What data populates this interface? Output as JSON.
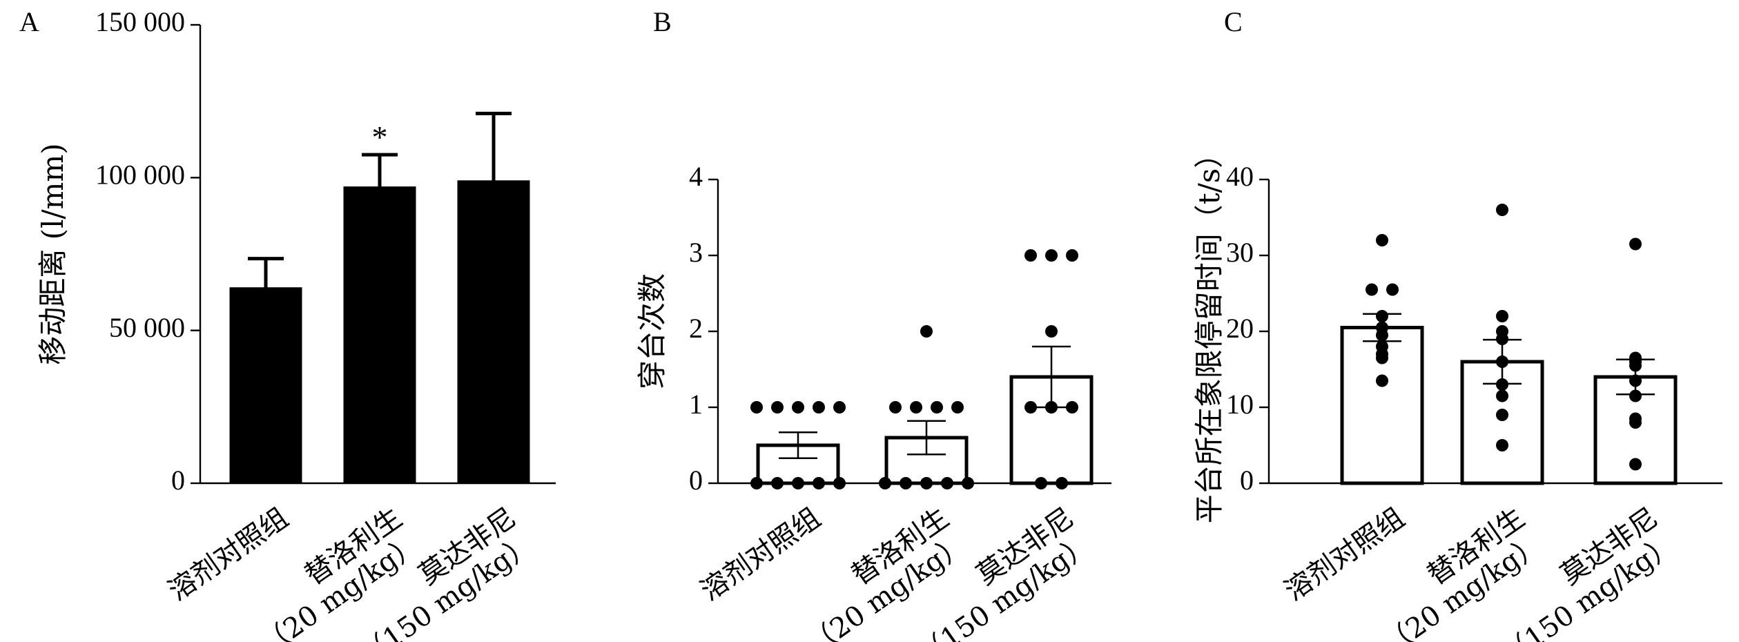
{
  "panels": [
    {
      "letter": "A",
      "ylabel": "移动距离 (l/mm)",
      "chart_data": {
        "type": "bar",
        "categories": [
          [
            "溶剂对照组"
          ],
          [
            "替洛利生",
            "（20 mg/kg）"
          ],
          [
            "莫达非尼",
            "（150 mg/kg）"
          ]
        ],
        "values": [
          64000,
          97000,
          99000
        ],
        "errors": [
          9500,
          10500,
          22000
        ],
        "ylim": [
          0,
          150000
        ],
        "yticks": [
          0,
          50000,
          100000,
          150000
        ],
        "ytick_labels": [
          "0",
          "50 000",
          "100 000",
          "150 000"
        ],
        "significance": [
          "",
          "*",
          ""
        ],
        "bar_fill": "#000000"
      }
    },
    {
      "letter": "B",
      "ylabel": "穿台次数",
      "chart_data": {
        "type": "bar",
        "categories": [
          [
            "溶剂对照组"
          ],
          [
            "替洛利生",
            "（20 mg/kg）"
          ],
          [
            "莫达非尼",
            "（150 mg/kg）"
          ]
        ],
        "values": [
          0.5,
          0.6,
          1.4
        ],
        "errors": [
          0.17,
          0.22,
          0.4
        ],
        "points": [
          [
            1,
            1,
            1,
            1,
            1,
            0,
            0,
            0,
            0,
            0
          ],
          [
            2,
            1,
            1,
            1,
            1,
            0,
            0,
            0,
            0,
            0
          ],
          [
            3,
            3,
            3,
            2,
            1,
            1,
            1,
            0,
            0
          ]
        ],
        "ylim": [
          0,
          4
        ],
        "yticks": [
          0,
          1,
          2,
          3,
          4
        ],
        "ytick_labels": [
          "0",
          "1",
          "2",
          "3",
          "4"
        ],
        "bar_fill": "#ffffff"
      }
    },
    {
      "letter": "C",
      "ylabel": "平台所在象限停留时间（t/s）",
      "chart_data": {
        "type": "bar",
        "categories": [
          [
            "溶剂对照组"
          ],
          [
            "替洛利生",
            "（20 mg/kg）"
          ],
          [
            "莫达非尼",
            "（150 mg/kg）"
          ]
        ],
        "values": [
          20.5,
          16,
          14
        ],
        "errors": [
          1.8,
          2.9,
          2.3
        ],
        "points": [
          [
            32,
            25.5,
            25.5,
            22,
            20.5,
            19.5,
            18,
            17,
            16.5,
            13.5
          ],
          [
            36,
            22,
            20,
            19,
            16,
            13,
            11.5,
            9,
            5
          ],
          [
            31.5,
            16.5,
            16,
            15.5,
            13.5,
            11.5,
            8.5,
            8,
            2.5
          ]
        ],
        "ylim": [
          0,
          40
        ],
        "yticks": [
          0,
          10,
          20,
          30,
          40
        ],
        "ytick_labels": [
          "0",
          "10",
          "20",
          "30",
          "40"
        ],
        "bar_fill": "#ffffff"
      }
    }
  ]
}
